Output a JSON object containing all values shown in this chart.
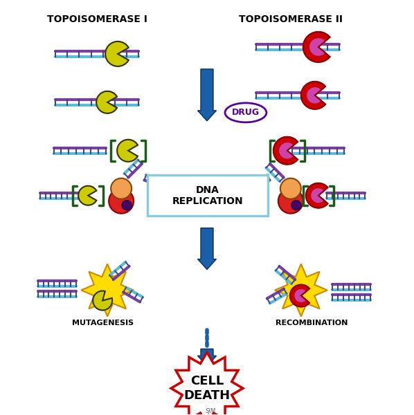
{
  "title": "TOPOISOMERASE I / TOPOISOMERASE II diagram",
  "bg_color": "#FFFFFF",
  "topo1_label": "TOPOISOMERASE I",
  "topo2_label": "TOPOISOMERASE II",
  "drug_label": "DRUG",
  "dna_rep_label": "DNA\nREPLICATION",
  "mutagenesis_label": "MUTAGENESIS",
  "recombination_label": "RECOMBINATION",
  "cell_death_label": "CELL\nDEATH",
  "arrow_color": "#1a5fa8",
  "dna_purple": "#7B3FA0",
  "dna_blue": "#5BBCD6",
  "enzyme1_color": "#CCCC00",
  "enzyme2_color": "#CC0000",
  "enzyme2_inner": "#CC44AA",
  "bracket_color": "#1a5a1a",
  "replication_box_color": "#88CCDD",
  "cell_death_border": "#CC0000",
  "cell_death_text": "#000000",
  "orange_ball": "#F0A050",
  "red_ball": "#DD2020",
  "explosion_color": "#FFDD00"
}
